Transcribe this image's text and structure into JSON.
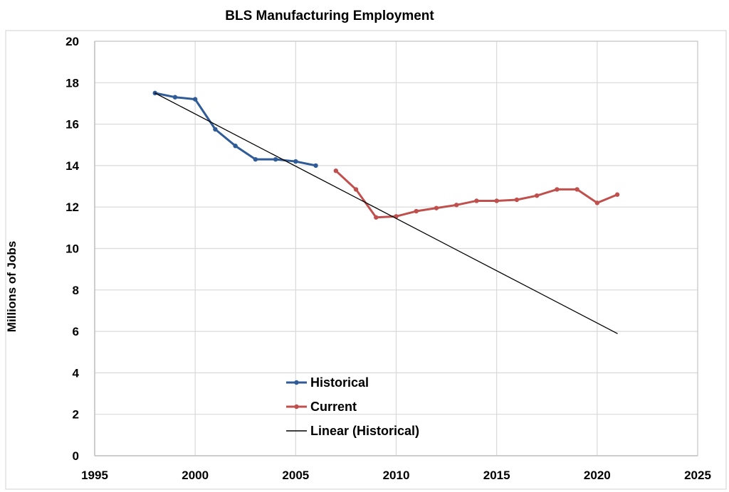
{
  "chart_data": {
    "type": "line",
    "title": "BLS Manufacturing Employment",
    "xlabel": "",
    "ylabel": "Millions of Jobs",
    "xlim": [
      1995,
      2025
    ],
    "ylim": [
      0,
      20
    ],
    "xticks": [
      1995,
      2000,
      2005,
      2010,
      2015,
      2020,
      2025
    ],
    "yticks": [
      0,
      2,
      4,
      6,
      8,
      10,
      12,
      14,
      16,
      18,
      20
    ],
    "grid": true,
    "legend_position": "bottom-center",
    "series": [
      {
        "name": "Historical",
        "color": "#2f5b97",
        "x": [
          1998,
          1999,
          2000,
          2001,
          2002,
          2003,
          2004,
          2005,
          2006
        ],
        "values": [
          17.5,
          17.3,
          17.2,
          15.75,
          14.95,
          14.3,
          14.3,
          14.2,
          14.0
        ]
      },
      {
        "name": "Current",
        "color": "#c0504d",
        "x": [
          2007,
          2008,
          2009,
          2010,
          2011,
          2012,
          2013,
          2014,
          2015,
          2016,
          2017,
          2018,
          2019,
          2020,
          2021
        ],
        "values": [
          13.75,
          12.85,
          11.5,
          11.55,
          11.8,
          11.95,
          12.1,
          12.3,
          12.3,
          12.35,
          12.55,
          12.85,
          12.85,
          12.2,
          12.6
        ]
      },
      {
        "name": "Linear (Historical)",
        "color": "#000000",
        "x": [
          1998,
          2021
        ],
        "values": [
          17.5,
          5.9
        ]
      }
    ]
  }
}
